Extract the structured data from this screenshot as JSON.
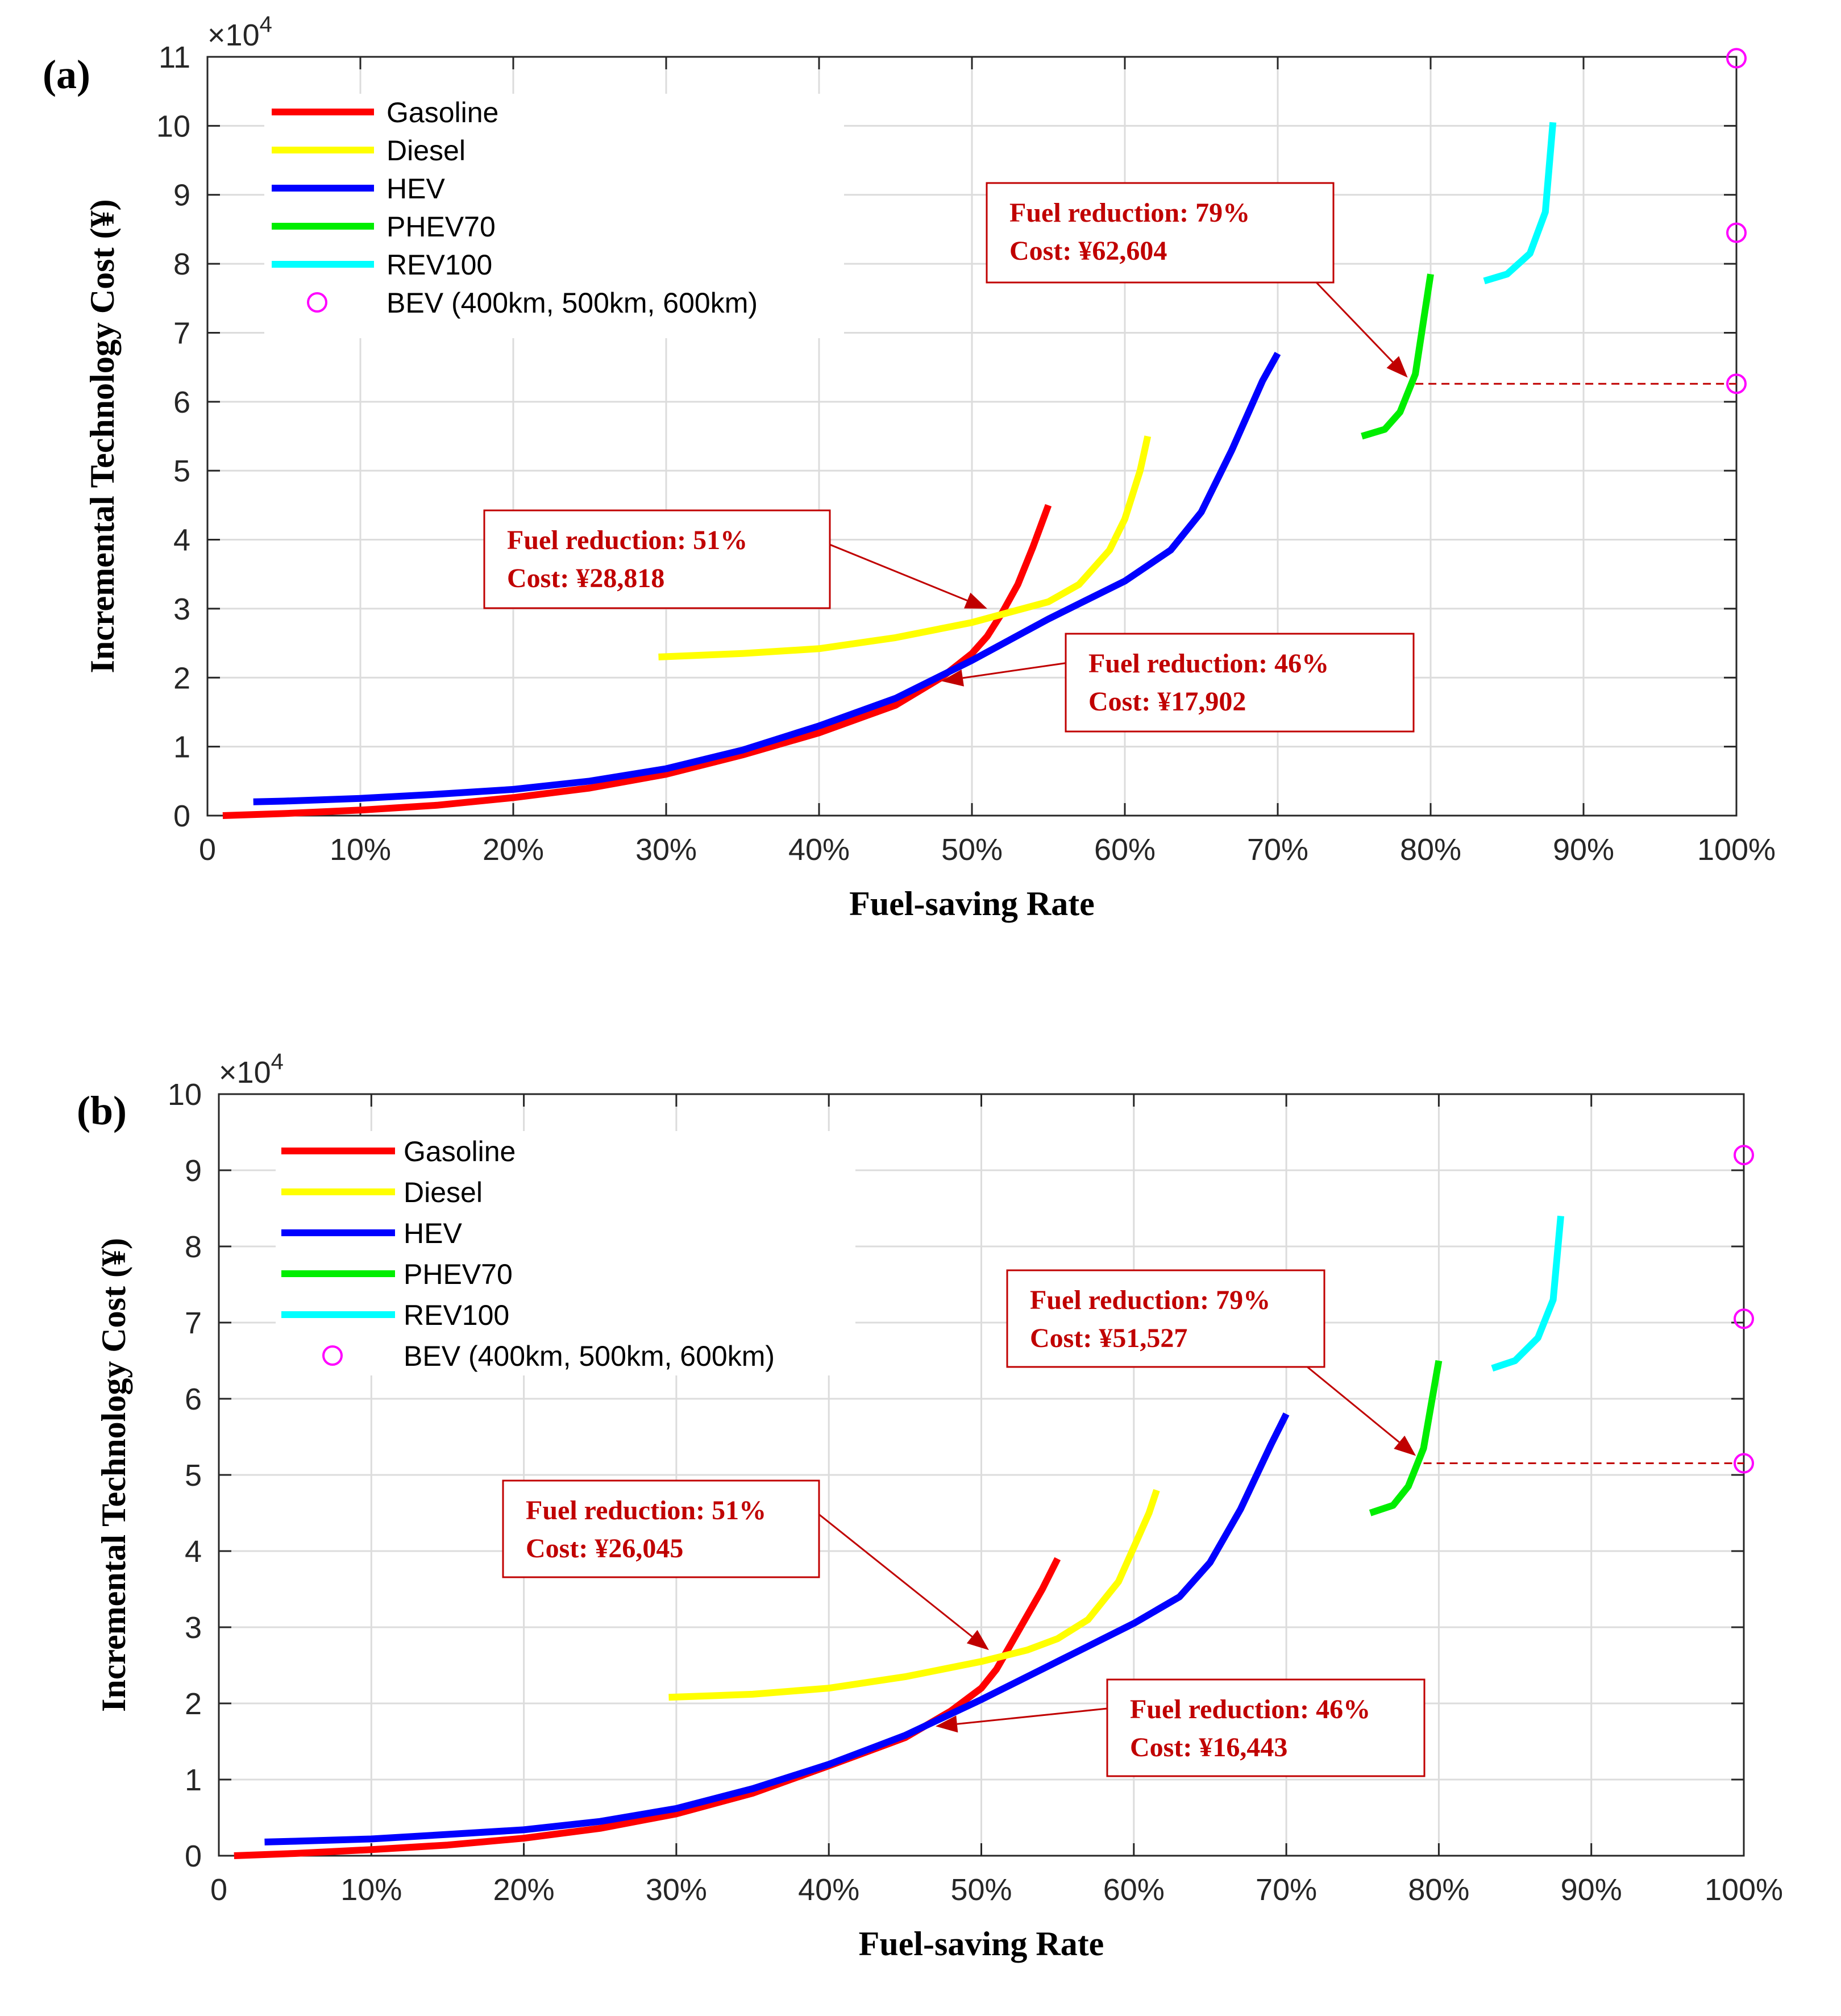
{
  "chart_data": [
    {
      "panel_label": "(a)",
      "type": "line",
      "xlabel": "Fuel-saving Rate",
      "ylabel": "Incremental Technology Cost (¥)",
      "y_exponent_label": "×10^4",
      "xlim": [
        0,
        1
      ],
      "ylim": [
        0,
        110000
      ],
      "x_ticks": [
        0,
        0.1,
        0.2,
        0.3,
        0.4,
        0.5,
        0.6,
        0.7,
        0.8,
        0.9,
        1.0
      ],
      "x_tick_labels": [
        "0",
        "10%",
        "20%",
        "30%",
        "40%",
        "50%",
        "60%",
        "70%",
        "80%",
        "90%",
        "100%"
      ],
      "y_ticks": [
        0,
        10000,
        20000,
        30000,
        40000,
        50000,
        60000,
        70000,
        80000,
        90000,
        100000,
        110000
      ],
      "y_tick_labels": [
        "0",
        "1",
        "2",
        "3",
        "4",
        "5",
        "6",
        "7",
        "8",
        "9",
        "10",
        "11"
      ],
      "grid": true,
      "legend_position": "top-left",
      "series": [
        {
          "name": "Gasoline",
          "color": "#FF0000",
          "points": [
            [
              0.01,
              0
            ],
            [
              0.05,
              300
            ],
            [
              0.1,
              800
            ],
            [
              0.15,
              1500
            ],
            [
              0.2,
              2600
            ],
            [
              0.25,
              4000
            ],
            [
              0.3,
              6000
            ],
            [
              0.35,
              8800
            ],
            [
              0.4,
              12000
            ],
            [
              0.45,
              16000
            ],
            [
              0.48,
              20000
            ],
            [
              0.5,
              23500
            ],
            [
              0.51,
              26000
            ],
            [
              0.52,
              29500
            ],
            [
              0.53,
              33500
            ],
            [
              0.54,
              39000
            ],
            [
              0.55,
              45000
            ]
          ]
        },
        {
          "name": "Diesel",
          "color": "#FFFF00",
          "points": [
            [
              0.295,
              23000
            ],
            [
              0.35,
              23500
            ],
            [
              0.4,
              24200
            ],
            [
              0.45,
              25800
            ],
            [
              0.5,
              28000
            ],
            [
              0.53,
              29800
            ],
            [
              0.55,
              31000
            ],
            [
              0.57,
              33500
            ],
            [
              0.59,
              38500
            ],
            [
              0.6,
              43000
            ],
            [
              0.61,
              50000
            ],
            [
              0.615,
              55000
            ]
          ]
        },
        {
          "name": "HEV",
          "color": "#0000FF",
          "points": [
            [
              0.03,
              2000
            ],
            [
              0.05,
              2100
            ],
            [
              0.1,
              2500
            ],
            [
              0.15,
              3100
            ],
            [
              0.2,
              3800
            ],
            [
              0.25,
              5000
            ],
            [
              0.3,
              6800
            ],
            [
              0.35,
              9500
            ],
            [
              0.4,
              13000
            ],
            [
              0.45,
              17000
            ],
            [
              0.5,
              22500
            ],
            [
              0.55,
              28500
            ],
            [
              0.6,
              34000
            ],
            [
              0.63,
              38500
            ],
            [
              0.65,
              44000
            ],
            [
              0.67,
              53000
            ],
            [
              0.69,
              63000
            ],
            [
              0.7,
              67000
            ]
          ]
        },
        {
          "name": "PHEV70",
          "color": "#00EE00",
          "points": [
            [
              0.755,
              55000
            ],
            [
              0.77,
              56000
            ],
            [
              0.78,
              58500
            ],
            [
              0.79,
              64000
            ],
            [
              0.8,
              78500
            ]
          ]
        },
        {
          "name": "REV100",
          "color": "#00FFFF",
          "points": [
            [
              0.835,
              77500
            ],
            [
              0.85,
              78500
            ],
            [
              0.865,
              81500
            ],
            [
              0.875,
              87500
            ],
            [
              0.88,
              100500
            ]
          ]
        },
        {
          "name": "BEV (400km, 500km, 600km)",
          "color": "#FF00FF",
          "marker": "circle",
          "points": [
            [
              1.0,
              62604
            ],
            [
              1.0,
              84500
            ],
            [
              1.0,
              109800
            ]
          ]
        }
      ],
      "annotations": [
        {
          "line1": "Fuel reduction: 79%",
          "line2": "Cost: ¥62,604",
          "target": [
            0.785,
            63500
          ]
        },
        {
          "line1": "Fuel reduction: 51%",
          "line2": "Cost: ¥28,818",
          "target": [
            0.51,
            30000
          ]
        },
        {
          "line1": "Fuel reduction: 46%",
          "line2": "Cost: ¥17,902",
          "target": [
            0.48,
            19500
          ]
        }
      ],
      "reference_line": {
        "x": [
          0.79,
          1.0
        ],
        "y": 62604,
        "color": "#C00000",
        "style": "dashed"
      }
    },
    {
      "panel_label": "(b)",
      "type": "line",
      "xlabel": "Fuel-saving Rate",
      "ylabel": "Incremental Technology Cost (¥)",
      "y_exponent_label": "×10^4",
      "xlim": [
        0,
        1
      ],
      "ylim": [
        0,
        100000
      ],
      "x_ticks": [
        0,
        0.1,
        0.2,
        0.3,
        0.4,
        0.5,
        0.6,
        0.7,
        0.8,
        0.9,
        1.0
      ],
      "x_tick_labels": [
        "0",
        "10%",
        "20%",
        "30%",
        "40%",
        "50%",
        "60%",
        "70%",
        "80%",
        "90%",
        "100%"
      ],
      "y_ticks": [
        0,
        10000,
        20000,
        30000,
        40000,
        50000,
        60000,
        70000,
        80000,
        90000,
        100000
      ],
      "y_tick_labels": [
        "0",
        "1",
        "2",
        "3",
        "4",
        "5",
        "6",
        "7",
        "8",
        "9",
        "10"
      ],
      "grid": true,
      "legend_position": "top-left",
      "series": [
        {
          "name": "Gasoline",
          "color": "#FF0000",
          "points": [
            [
              0.01,
              0
            ],
            [
              0.05,
              300
            ],
            [
              0.1,
              800
            ],
            [
              0.15,
              1400
            ],
            [
              0.2,
              2300
            ],
            [
              0.25,
              3600
            ],
            [
              0.3,
              5500
            ],
            [
              0.35,
              8200
            ],
            [
              0.4,
              11800
            ],
            [
              0.45,
              15500
            ],
            [
              0.48,
              19000
            ],
            [
              0.5,
              22000
            ],
            [
              0.51,
              24500
            ],
            [
              0.52,
              28000
            ],
            [
              0.53,
              31500
            ],
            [
              0.54,
              35000
            ],
            [
              0.55,
              39000
            ]
          ]
        },
        {
          "name": "Diesel",
          "color": "#FFFF00",
          "points": [
            [
              0.295,
              20800
            ],
            [
              0.35,
              21200
            ],
            [
              0.4,
              22000
            ],
            [
              0.45,
              23500
            ],
            [
              0.5,
              25500
            ],
            [
              0.53,
              27000
            ],
            [
              0.55,
              28500
            ],
            [
              0.57,
              31000
            ],
            [
              0.59,
              36000
            ],
            [
              0.6,
              40500
            ],
            [
              0.61,
              45000
            ],
            [
              0.615,
              48000
            ]
          ]
        },
        {
          "name": "HEV",
          "color": "#0000FF",
          "points": [
            [
              0.03,
              1800
            ],
            [
              0.05,
              1900
            ],
            [
              0.1,
              2200
            ],
            [
              0.15,
              2800
            ],
            [
              0.2,
              3400
            ],
            [
              0.25,
              4500
            ],
            [
              0.3,
              6200
            ],
            [
              0.35,
              8800
            ],
            [
              0.4,
              12000
            ],
            [
              0.45,
              15800
            ],
            [
              0.5,
              20500
            ],
            [
              0.55,
              25500
            ],
            [
              0.6,
              30500
            ],
            [
              0.63,
              34000
            ],
            [
              0.65,
              38500
            ],
            [
              0.67,
              45500
            ],
            [
              0.69,
              54000
            ],
            [
              0.7,
              58000
            ]
          ]
        },
        {
          "name": "PHEV70",
          "color": "#00EE00",
          "points": [
            [
              0.755,
              45000
            ],
            [
              0.77,
              46000
            ],
            [
              0.78,
              48500
            ],
            [
              0.79,
              53500
            ],
            [
              0.8,
              65000
            ]
          ]
        },
        {
          "name": "REV100",
          "color": "#00FFFF",
          "points": [
            [
              0.835,
              64000
            ],
            [
              0.85,
              65000
            ],
            [
              0.865,
              68000
            ],
            [
              0.875,
              73000
            ],
            [
              0.88,
              84000
            ]
          ]
        },
        {
          "name": "BEV (400km, 500km, 600km)",
          "color": "#FF00FF",
          "marker": "circle",
          "points": [
            [
              1.0,
              51527
            ],
            [
              1.0,
              70500
            ],
            [
              1.0,
              92000
            ]
          ]
        }
      ],
      "annotations": [
        {
          "line1": "Fuel reduction: 79%",
          "line2": "Cost: ¥51,527",
          "target": [
            0.785,
            52500
          ]
        },
        {
          "line1": "Fuel reduction: 51%",
          "line2": "Cost: ¥26,045",
          "target": [
            0.505,
            27000
          ]
        },
        {
          "line1": "Fuel reduction: 46%",
          "line2": "Cost: ¥16,443",
          "target": [
            0.47,
            17000
          ]
        }
      ],
      "reference_line": {
        "x": [
          0.79,
          1.0
        ],
        "y": 51527,
        "color": "#C00000",
        "style": "dashed"
      }
    }
  ]
}
